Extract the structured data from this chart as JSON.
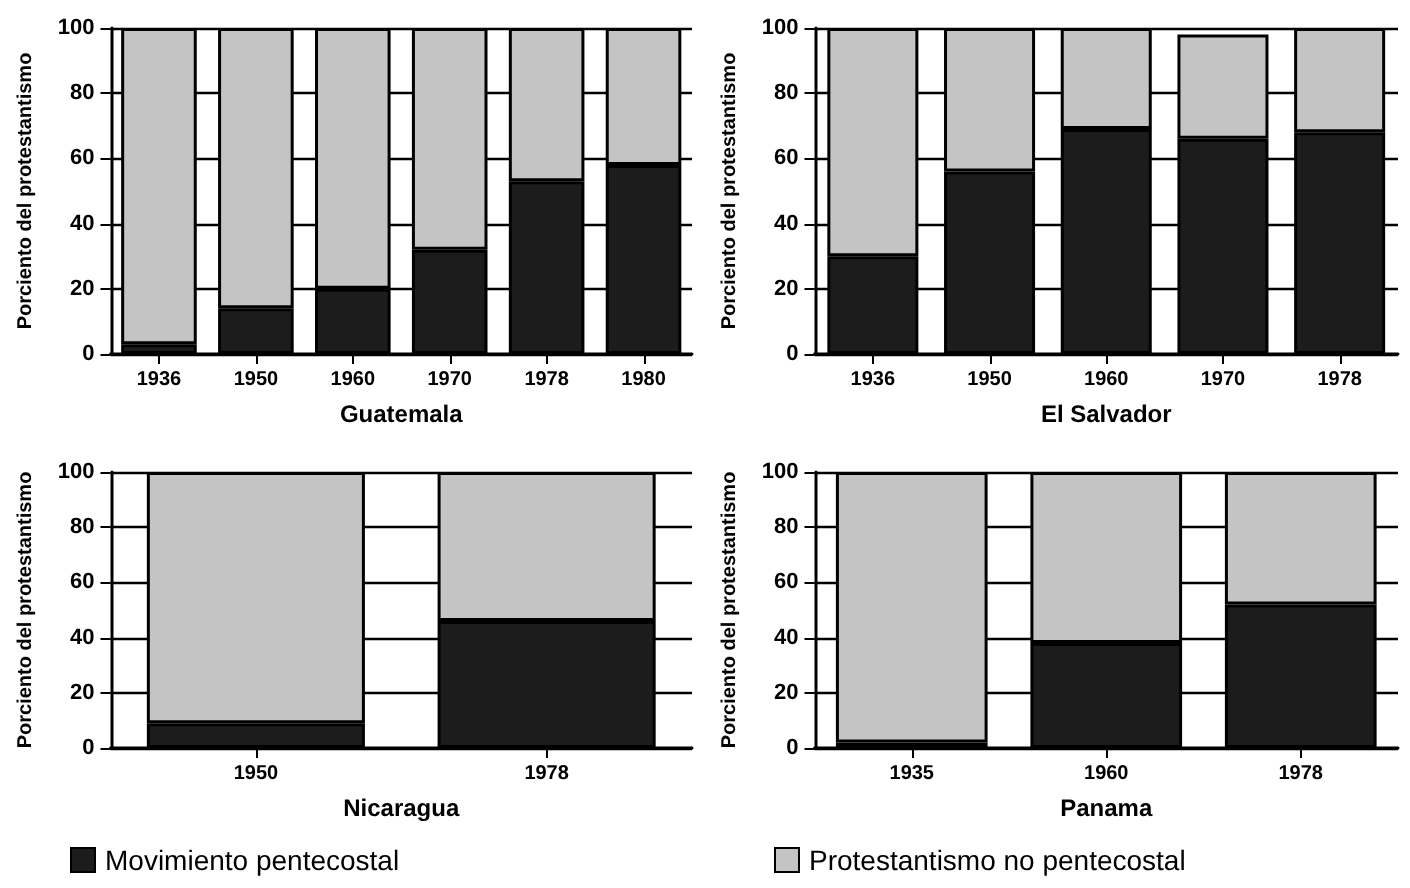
{
  "chart_data": [
    {
      "type": "bar",
      "xlabel": "Guatemala",
      "ylabel": "Porciento del protestantismo",
      "categories": [
        "1936",
        "1950",
        "1960",
        "1970",
        "1978",
        "1980"
      ],
      "stacked": true,
      "ylim": [
        0,
        100
      ],
      "yticks": [
        0,
        20,
        40,
        60,
        80,
        100
      ],
      "grid": "y",
      "legend": false,
      "series": [
        {
          "color": "#1c1c1c",
          "values": [
            3,
            14,
            20,
            32,
            53,
            58
          ]
        },
        {
          "color": "#c4c4c4",
          "values": [
            97,
            86,
            80,
            68,
            47,
            42
          ]
        }
      ]
    },
    {
      "type": "bar",
      "xlabel": "El Salvador",
      "ylabel": "Porciento del protestantismo",
      "categories": [
        "1936",
        "1950",
        "1960",
        "1970",
        "1978"
      ],
      "stacked": true,
      "ylim": [
        0,
        100
      ],
      "yticks": [
        0,
        20,
        40,
        60,
        80,
        100
      ],
      "grid": "y",
      "legend": false,
      "series": [
        {
          "color": "#1c1c1c",
          "values": [
            30,
            56,
            69,
            66,
            68
          ]
        },
        {
          "color": "#c4c4c4",
          "values": [
            70,
            44,
            31,
            32,
            32
          ]
        }
      ]
    },
    {
      "type": "bar",
      "xlabel": "Nicaragua",
      "ylabel": "Porciento del protestantismo",
      "categories": [
        "1950",
        "1978"
      ],
      "stacked": true,
      "ylim": [
        0,
        100
      ],
      "yticks": [
        0,
        20,
        40,
        60,
        80,
        100
      ],
      "grid": "y",
      "legend": "bottom left",
      "series": [
        {
          "name": "Movimiento pentecostal",
          "color": "#1c1c1c",
          "values": [
            9,
            46
          ]
        },
        {
          "color": "#c4c4c4",
          "values": [
            91,
            54
          ]
        }
      ]
    },
    {
      "type": "bar",
      "xlabel": "Panama",
      "ylabel": "Porciento del protestantismo",
      "categories": [
        "1935",
        "1960",
        "1978"
      ],
      "stacked": true,
      "ylim": [
        0,
        100
      ],
      "yticks": [
        0,
        20,
        40,
        60,
        80,
        100
      ],
      "grid": "y",
      "legend": "bottom left",
      "series": [
        {
          "color": "#1c1c1c",
          "values": [
            2,
            38,
            52
          ]
        },
        {
          "name": "Protestantismo no pentecostal",
          "color": "#c4c4c4",
          "values": [
            98,
            62,
            48
          ]
        }
      ]
    }
  ]
}
